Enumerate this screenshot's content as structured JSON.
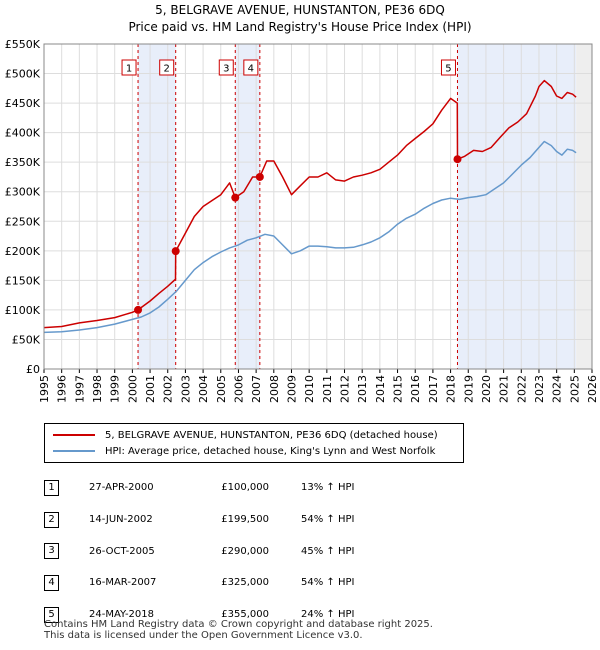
{
  "title_line1": "5, BELGRAVE AVENUE, HUNSTANTON, PE36 6DQ",
  "title_line2": "Price paid vs. HM Land Registry's House Price Index (HPI)",
  "chart_data": {
    "type": "line",
    "xlim": [
      1995,
      2026
    ],
    "ylim": [
      0,
      550000
    ],
    "y_ticks": [
      0,
      50000,
      100000,
      150000,
      200000,
      250000,
      300000,
      350000,
      400000,
      450000,
      500000,
      550000
    ],
    "y_tick_labels": [
      "£0",
      "£50K",
      "£100K",
      "£150K",
      "£200K",
      "£250K",
      "£300K",
      "£350K",
      "£400K",
      "£450K",
      "£500K",
      "£550K"
    ],
    "x_ticks": [
      "1995",
      "1996",
      "1997",
      "1998",
      "1999",
      "2000",
      "2001",
      "2002",
      "2003",
      "2004",
      "2005",
      "2006",
      "2007",
      "2008",
      "2009",
      "2010",
      "2011",
      "2012",
      "2013",
      "2014",
      "2015",
      "2016",
      "2017",
      "2018",
      "2019",
      "2020",
      "2021",
      "2022",
      "2023",
      "2024",
      "2025",
      "2026"
    ],
    "grid": true,
    "shaded_periods": [
      [
        2000.32,
        2002.45
      ],
      [
        2005.82,
        2007.21
      ],
      [
        2018.39,
        2025.1
      ]
    ],
    "future_start": 2025.1,
    "series": [
      {
        "name": "5, BELGRAVE AVENUE, HUNSTANTON, PE36 6DQ (detached house)",
        "color": "#cc0000",
        "x": [
          1995.0,
          1996.0,
          1997.0,
          1998.0,
          1999.0,
          2000.0,
          2000.32,
          2001.0,
          2001.5,
          2002.0,
          2002.44,
          2002.45,
          2003.0,
          2003.5,
          2004.0,
          2004.5,
          2005.0,
          2005.5,
          2005.82,
          2006.3,
          2006.8,
          2007.21,
          2007.6,
          2008.0,
          2008.5,
          2009.0,
          2009.5,
          2010.0,
          2010.5,
          2011.0,
          2011.5,
          2012.0,
          2012.5,
          2013.0,
          2013.5,
          2014.0,
          2014.5,
          2015.0,
          2015.5,
          2016.0,
          2016.5,
          2017.0,
          2017.5,
          2018.0,
          2018.38,
          2018.39,
          2018.8,
          2019.3,
          2019.8,
          2020.3,
          2020.8,
          2021.3,
          2021.8,
          2022.3,
          2022.8,
          2023.0,
          2023.3,
          2023.7,
          2024.0,
          2024.3,
          2024.6,
          2024.9,
          2025.1
        ],
        "values": [
          70000,
          72000,
          78000,
          82000,
          87000,
          96000,
          100000,
          115000,
          128000,
          140000,
          152000,
          199500,
          230000,
          258000,
          275000,
          285000,
          295000,
          315000,
          290000,
          300000,
          325000,
          325000,
          352000,
          352000,
          325000,
          295000,
          310000,
          325000,
          325000,
          332000,
          320000,
          318000,
          325000,
          328000,
          332000,
          338000,
          350000,
          362000,
          378000,
          390000,
          402000,
          415000,
          438000,
          458000,
          450000,
          355000,
          360000,
          370000,
          368000,
          375000,
          392000,
          408000,
          418000,
          432000,
          462000,
          478000,
          488000,
          478000,
          462000,
          458000,
          468000,
          465000,
          460000
        ]
      },
      {
        "name": "HPI: Average price, detached house, King's Lynn and West Norfolk",
        "color": "#6699cc",
        "x": [
          1995.0,
          1996.0,
          1997.0,
          1998.0,
          1999.0,
          2000.0,
          2000.5,
          2001.0,
          2001.5,
          2002.0,
          2002.5,
          2003.0,
          2003.5,
          2004.0,
          2004.5,
          2005.0,
          2005.5,
          2006.0,
          2006.5,
          2007.0,
          2007.5,
          2008.0,
          2008.5,
          2009.0,
          2009.5,
          2010.0,
          2010.5,
          2011.0,
          2011.5,
          2012.0,
          2012.5,
          2013.0,
          2013.5,
          2014.0,
          2014.5,
          2015.0,
          2015.5,
          2016.0,
          2016.5,
          2017.0,
          2017.5,
          2018.0,
          2018.5,
          2019.0,
          2019.5,
          2020.0,
          2020.5,
          2021.0,
          2021.5,
          2022.0,
          2022.5,
          2023.0,
          2023.3,
          2023.7,
          2024.0,
          2024.3,
          2024.6,
          2024.9,
          2025.1
        ],
        "values": [
          62000,
          63000,
          66000,
          70000,
          76000,
          84000,
          88000,
          95000,
          105000,
          118000,
          132000,
          150000,
          168000,
          180000,
          190000,
          198000,
          205000,
          210000,
          218000,
          222000,
          228000,
          225000,
          210000,
          195000,
          200000,
          208000,
          208000,
          207000,
          205000,
          205000,
          206000,
          210000,
          215000,
          222000,
          232000,
          245000,
          255000,
          262000,
          272000,
          280000,
          286000,
          289000,
          287000,
          290000,
          292000,
          295000,
          305000,
          315000,
          330000,
          345000,
          358000,
          375000,
          385000,
          378000,
          368000,
          362000,
          372000,
          370000,
          366000
        ]
      }
    ],
    "sale_points": [
      {
        "label": "1",
        "x": 2000.32,
        "y": 100000
      },
      {
        "label": "2",
        "x": 2002.45,
        "y": 199500
      },
      {
        "label": "3",
        "x": 2005.82,
        "y": 290000
      },
      {
        "label": "4",
        "x": 2007.21,
        "y": 325000
      },
      {
        "label": "5",
        "x": 2018.39,
        "y": 355000
      }
    ]
  },
  "legend": [
    {
      "label": "5, BELGRAVE AVENUE, HUNSTANTON, PE36 6DQ (detached house)",
      "color": "#cc0000"
    },
    {
      "label": "HPI: Average price, detached house, King's Lynn and West Norfolk",
      "color": "#6699cc"
    }
  ],
  "sales": [
    {
      "num": "1",
      "date": "27-APR-2000",
      "price": "£100,000",
      "hpi": "13% ↑ HPI"
    },
    {
      "num": "2",
      "date": "14-JUN-2002",
      "price": "£199,500",
      "hpi": "54% ↑ HPI"
    },
    {
      "num": "3",
      "date": "26-OCT-2005",
      "price": "£290,000",
      "hpi": "45% ↑ HPI"
    },
    {
      "num": "4",
      "date": "16-MAR-2007",
      "price": "£325,000",
      "hpi": "54% ↑ HPI"
    },
    {
      "num": "5",
      "date": "24-MAY-2018",
      "price": "£355,000",
      "hpi": "24% ↑ HPI"
    }
  ],
  "footer_line1": "Contains HM Land Registry data © Crown copyright and database right 2025.",
  "footer_line2": "This data is licensed under the Open Government Licence v3.0."
}
